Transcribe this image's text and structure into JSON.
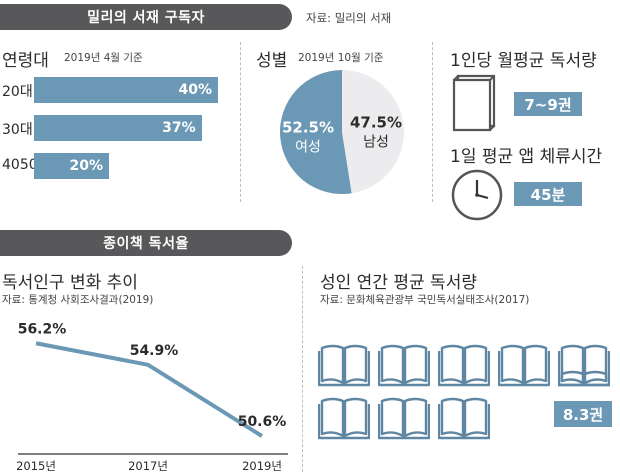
{
  "header1": {
    "title": "밀리의 서재 구독자",
    "source": "자료: 밀리의 서재"
  },
  "age": {
    "title": "연령대",
    "note": "2019년 4월 기준",
    "items": [
      {
        "label": "20대",
        "value": 40,
        "value_label": "40%"
      },
      {
        "label": "30대",
        "value": 37,
        "value_label": "37%"
      },
      {
        "label": "4050",
        "value": 20,
        "value_label": "20%"
      }
    ]
  },
  "gender": {
    "title": "성별",
    "note": "2019년 10월 기준",
    "slices": [
      {
        "label": "여성",
        "value": 52.5,
        "value_label": "52.5%",
        "color": "#6a98b5"
      },
      {
        "label": "남성",
        "value": 47.5,
        "value_label": "47.5%",
        "color": "#ececef"
      }
    ]
  },
  "monthly": {
    "title": "1인당 월평균 독서량",
    "value": "7~9권",
    "icon": "book-icon"
  },
  "daily": {
    "title": "1일 평균 앱 체류시간",
    "value": "45분",
    "icon": "clock-icon"
  },
  "header2": {
    "title": "종이책 독서율"
  },
  "chart_data": [
    {
      "type": "bar",
      "title": "연령대",
      "subtitle": "2019년 4월 기준",
      "categories": [
        "20대",
        "30대",
        "4050"
      ],
      "values": [
        40,
        37,
        20
      ],
      "unit": "%"
    },
    {
      "type": "pie",
      "title": "성별",
      "subtitle": "2019년 10월 기준",
      "categories": [
        "여성",
        "남성"
      ],
      "values": [
        52.5,
        47.5
      ],
      "unit": "%"
    },
    {
      "type": "line",
      "title": "독서인구 변화 추이",
      "subtitle": "자료: 통계청 사회조사결과(2019)",
      "categories": [
        "2015년",
        "2017년",
        "2019년"
      ],
      "values": [
        56.2,
        54.9,
        50.6
      ],
      "value_labels": [
        "56.2%",
        "54.9%",
        "50.6%"
      ],
      "color": "#6a98b5",
      "grid": false
    }
  ],
  "annual": {
    "title": "성인 연간 평균 독서량",
    "source": "자료: 문화체육관광부 국민독서실태조사(2017)",
    "books": 8.3,
    "value": "8.3권",
    "icon": "open-book-icon"
  }
}
